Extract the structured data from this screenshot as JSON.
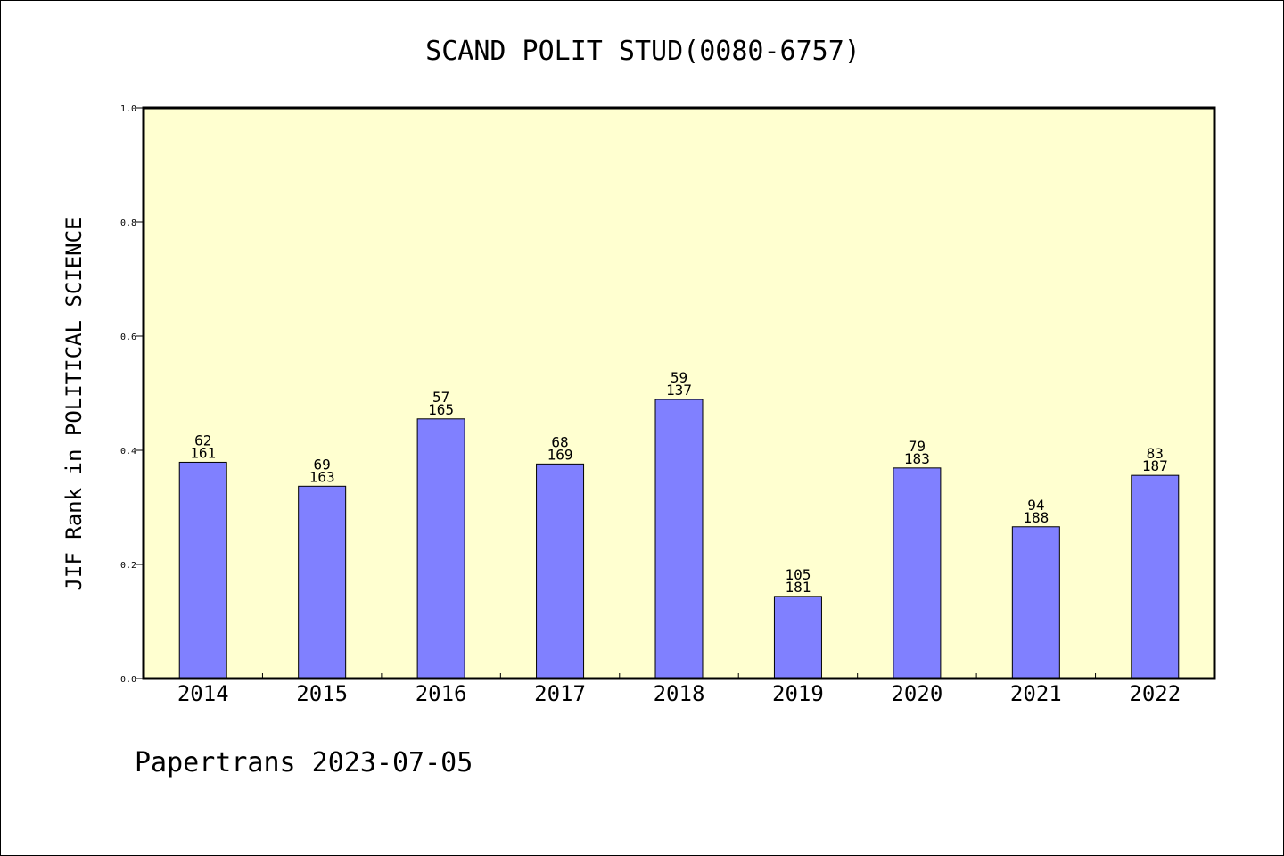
{
  "chart_data": {
    "type": "bar",
    "title": "SCAND POLIT STUD(0080-6757)",
    "xlabel": "",
    "ylabel": "JIF Rank in POLITICAL SCIENCE",
    "ylim": [
      0,
      1.0
    ],
    "yticks": [
      "0.0",
      "0.2",
      "0.4",
      "0.6",
      "0.8",
      "1.0"
    ],
    "categories": [
      "2014",
      "2015",
      "2016",
      "2017",
      "2018",
      "2019",
      "2020",
      "2021",
      "2022"
    ],
    "values": [
      0.379,
      0.337,
      0.455,
      0.376,
      0.489,
      0.144,
      0.369,
      0.266,
      0.356
    ],
    "rank": [
      "62",
      "69",
      "57",
      "68",
      "59",
      "105",
      "79",
      "94",
      "83"
    ],
    "total": [
      "161",
      "163",
      "165",
      "169",
      "137",
      "181",
      "183",
      "188",
      "187"
    ],
    "grid": false,
    "legend": "none",
    "colors": {
      "plot_background": "#ffffd0",
      "bar_fill": "#8080ff",
      "bar_stroke": "#000000"
    }
  },
  "footer": {
    "text": "Papertrans 2023-07-05"
  }
}
